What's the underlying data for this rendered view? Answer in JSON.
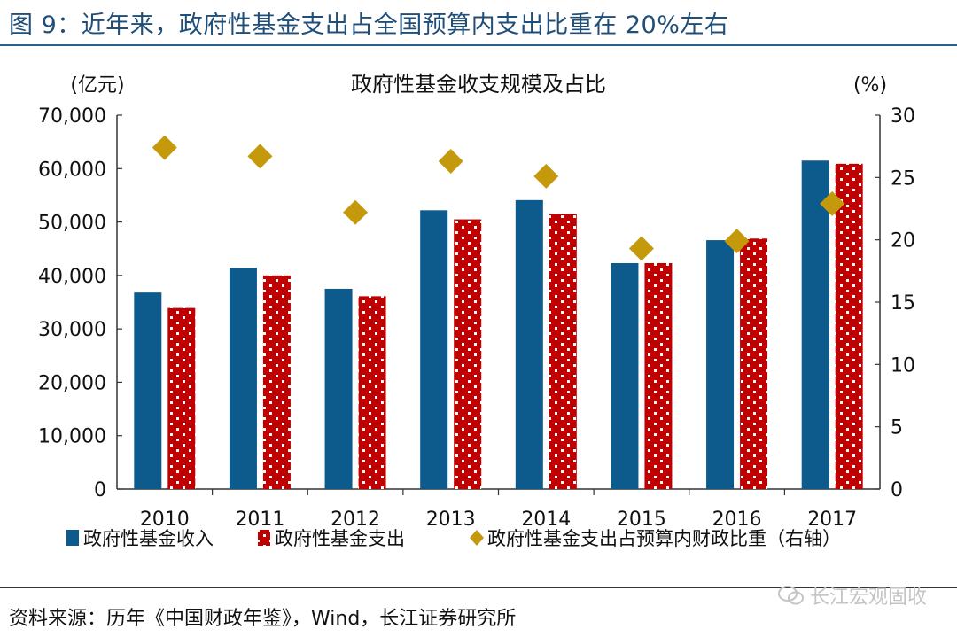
{
  "figure": {
    "title": "图 9：近年来，政府性基金支出占全国预算内支出比重在 20%左右",
    "source": "资料来源：历年《中国财政年鉴》，Wind，长江证券研究所",
    "watermark": "长江宏观固收"
  },
  "chart_data": {
    "type": "bar",
    "title": "政府性基金收支规模及占比",
    "ylabel_left": "(亿元)",
    "ylabel_right": "(%)",
    "categories": [
      "2010",
      "2011",
      "2012",
      "2013",
      "2014",
      "2015",
      "2016",
      "2017"
    ],
    "ylim_left": [
      0,
      70000
    ],
    "yticks_left": [
      "0",
      "10,000",
      "20,000",
      "30,000",
      "40,000",
      "50,000",
      "60,000",
      "70,000"
    ],
    "ylim_right": [
      0,
      30
    ],
    "yticks_right": [
      "0",
      "5",
      "10",
      "15",
      "20",
      "25",
      "30"
    ],
    "series": [
      {
        "name": "政府性基金收入",
        "type": "bar",
        "axis": "left",
        "color": "#0d5a8c",
        "values": [
          36800,
          41400,
          37500,
          52200,
          54100,
          42300,
          46600,
          61500
        ]
      },
      {
        "name": "政府性基金支出",
        "type": "bar",
        "axis": "left",
        "color": "#c00000",
        "pattern": "white-dots",
        "values": [
          33900,
          40000,
          36100,
          50500,
          51500,
          42300,
          46900,
          60900
        ]
      },
      {
        "name": "政府性基金支出占预算内财政比重（右轴）",
        "type": "scatter",
        "marker": "diamond",
        "axis": "right",
        "color": "#c49a0c",
        "values": [
          27.4,
          26.7,
          22.2,
          26.3,
          25.1,
          19.3,
          19.9,
          22.9
        ]
      }
    ],
    "grid": false,
    "legend_position": "bottom"
  }
}
